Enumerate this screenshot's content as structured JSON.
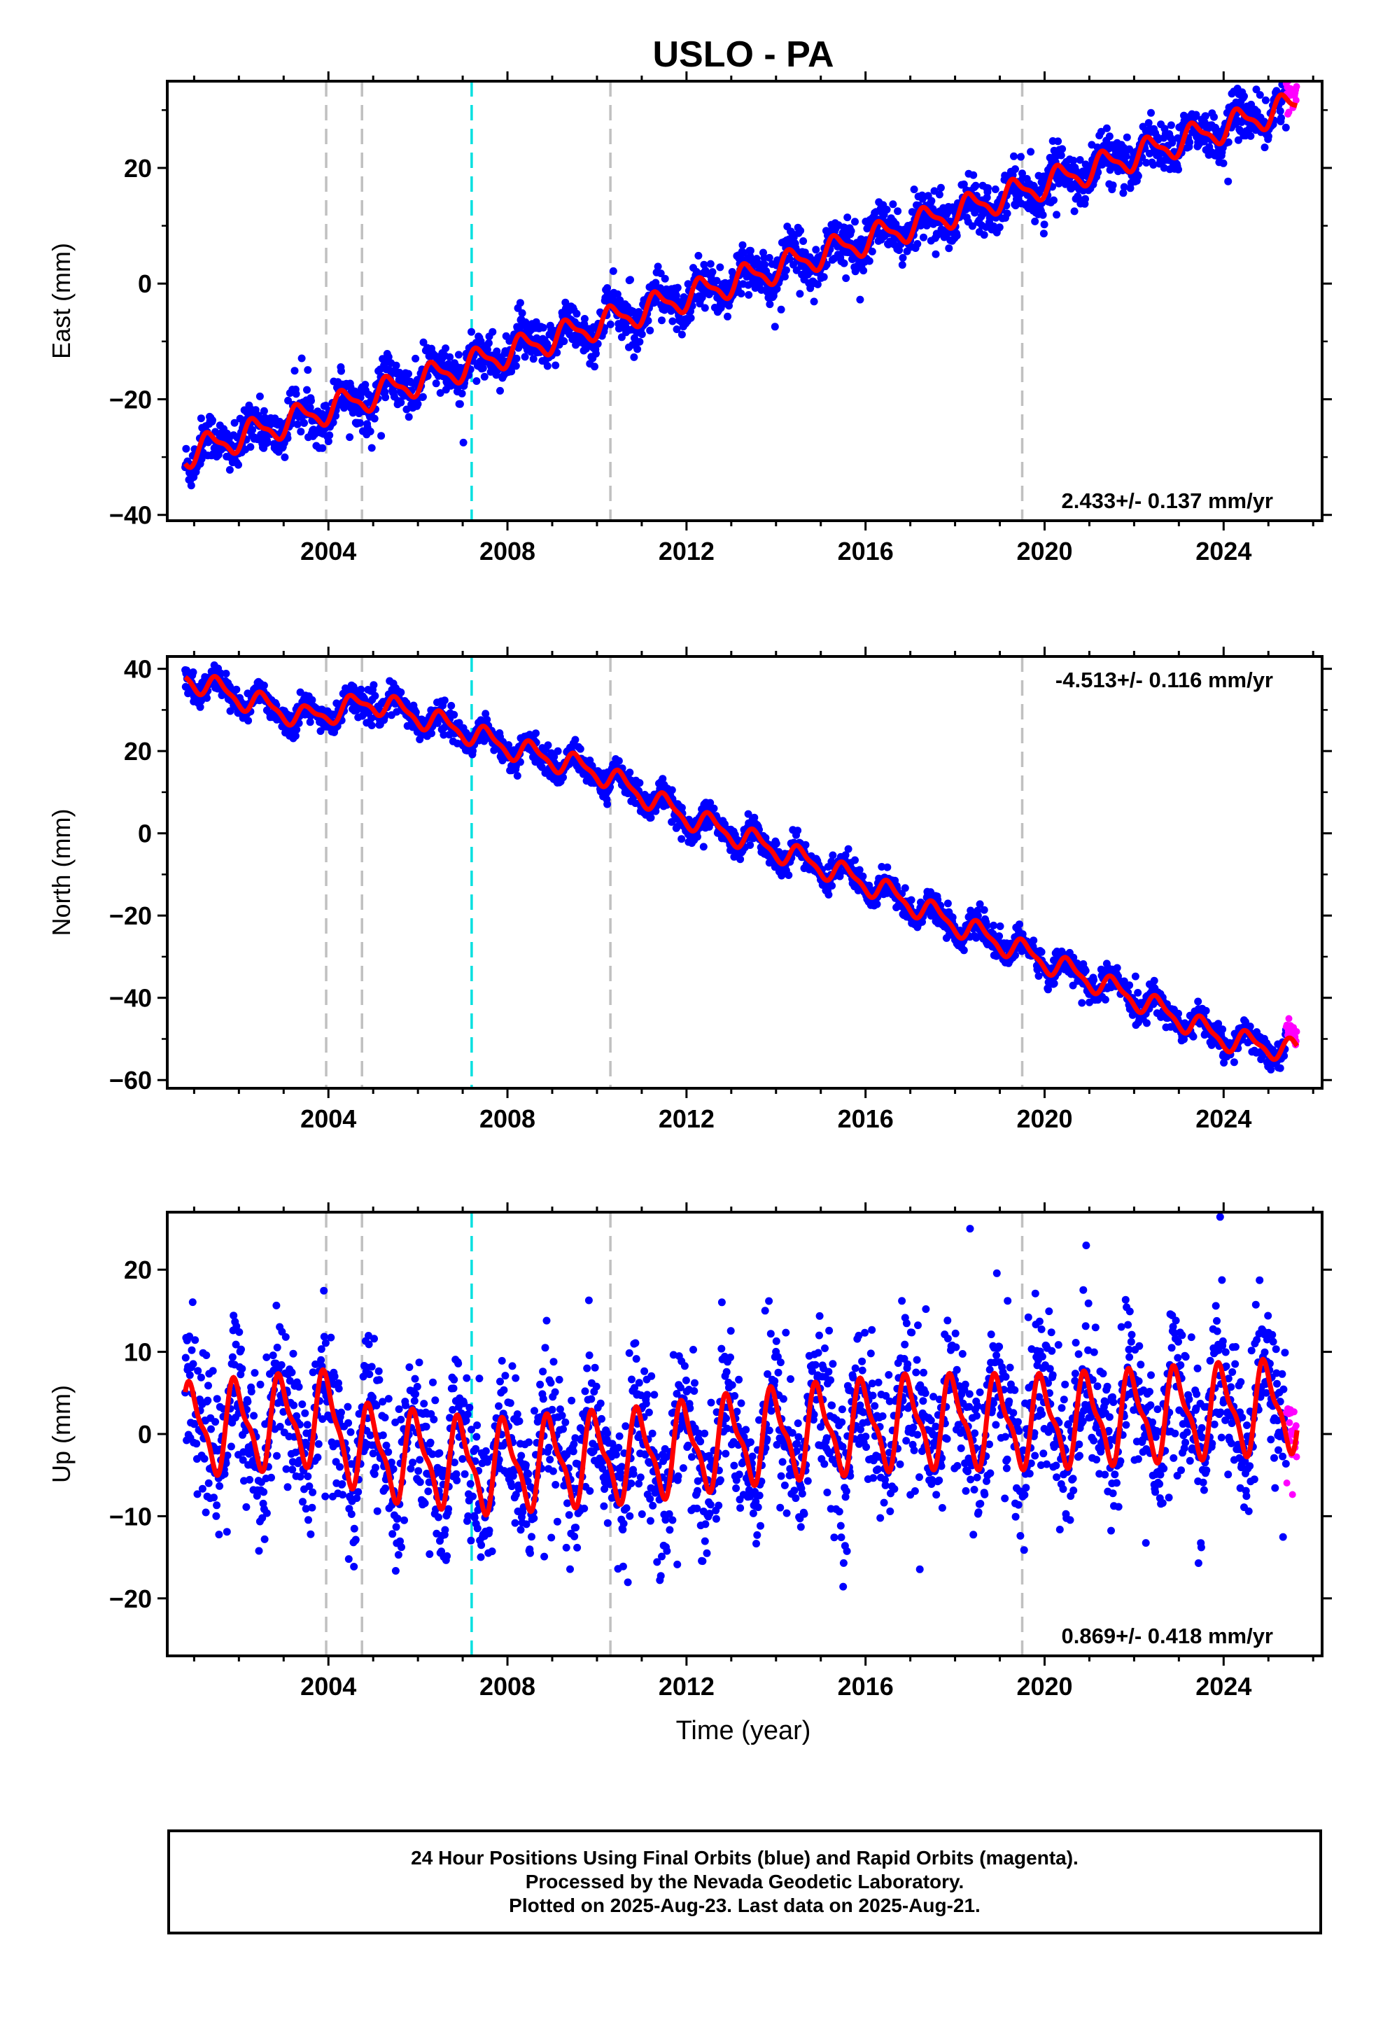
{
  "title": "USLO - PA",
  "xlabel": "Time (year)",
  "colors": {
    "final": "#0000ff",
    "rapid": "#ff00ff",
    "model": "#ff0000",
    "equipment_change": "#c0c0c0",
    "earthquake": "#00e0e0"
  },
  "chart_data": [
    {
      "type": "scatter",
      "panel": "east",
      "ylabel": "East (mm)",
      "rate_label": "2.433+/- 0.137 mm/yr",
      "rate_position": "bottom-right",
      "xlim": [
        2000.4,
        2026.2
      ],
      "ylim": [
        -41,
        35
      ],
      "yticks": [
        -40,
        -20,
        0,
        20
      ],
      "xticks": [
        2004,
        2008,
        2012,
        2016,
        2020,
        2024
      ],
      "trend": {
        "rate": 2.433,
        "value_at_2000_8": -29.5
      },
      "seasonal": {
        "amplitude": 2.2,
        "phase_year": 0.1
      },
      "scatter_sd": 2.0,
      "steps": [],
      "series": [
        {
          "name": "24 Hour Positions Using Final Orbits (blue)",
          "x_range": [
            2000.8,
            2025.4
          ],
          "color": "#0000ff"
        },
        {
          "name": "Rapid Orbits (magenta)",
          "x_range": [
            2025.4,
            2025.64
          ],
          "color": "#ff00ff"
        }
      ],
      "model_curve": {
        "x_range": [
          2000.8,
          2025.64
        ]
      },
      "vlines": [
        {
          "x": 2003.95,
          "kind": "equipment"
        },
        {
          "x": 2004.75,
          "kind": "equipment"
        },
        {
          "x": 2007.2,
          "kind": "earthquake"
        },
        {
          "x": 2010.3,
          "kind": "equipment"
        },
        {
          "x": 2019.5,
          "kind": "equipment"
        }
      ]
    },
    {
      "type": "scatter",
      "panel": "north",
      "ylabel": "North (mm)",
      "rate_label": "-4.513+/- 0.116 mm/yr",
      "rate_position": "top-right",
      "xlim": [
        2000.4,
        2026.2
      ],
      "ylim": [
        -62,
        43
      ],
      "yticks": [
        -60,
        -40,
        -20,
        0,
        20,
        40
      ],
      "xticks": [
        2004,
        2008,
        2012,
        2016,
        2020,
        2024
      ],
      "keyframes": [
        [
          2000.8,
          38
        ],
        [
          2002.0,
          33
        ],
        [
          2003.5,
          28
        ],
        [
          2005.0,
          32
        ],
        [
          2007.0,
          25
        ],
        [
          2008.0,
          21
        ],
        [
          2010.0,
          15
        ],
        [
          2012.0,
          4
        ],
        [
          2014.0,
          -4
        ],
        [
          2016.0,
          -12
        ],
        [
          2018.0,
          -22
        ],
        [
          2020.0,
          -31
        ],
        [
          2022.0,
          -40
        ],
        [
          2024.0,
          -50
        ],
        [
          2025.64,
          -53
        ]
      ],
      "seasonal": {
        "amplitude": 2.5,
        "phase_year": 0.3
      },
      "scatter_sd": 1.6,
      "series": [
        {
          "name": "24 Hour Positions Using Final Orbits (blue)",
          "x_range": [
            2000.8,
            2025.4
          ],
          "color": "#0000ff"
        },
        {
          "name": "Rapid Orbits (magenta)",
          "x_range": [
            2025.4,
            2025.64
          ],
          "color": "#ff00ff"
        }
      ],
      "model_curve": {
        "x_range": [
          2000.8,
          2025.64
        ]
      },
      "vlines": [
        {
          "x": 2003.95,
          "kind": "equipment"
        },
        {
          "x": 2004.75,
          "kind": "equipment"
        },
        {
          "x": 2007.2,
          "kind": "earthquake"
        },
        {
          "x": 2010.3,
          "kind": "equipment"
        },
        {
          "x": 2019.5,
          "kind": "equipment"
        }
      ]
    },
    {
      "type": "scatter",
      "panel": "up",
      "ylabel": "Up (mm)",
      "rate_label": "0.869+/- 0.418 mm/yr",
      "rate_position": "bottom-right",
      "xlim": [
        2000.4,
        2026.2
      ],
      "ylim": [
        -27,
        27
      ],
      "yticks": [
        -20,
        -10,
        0,
        10,
        20
      ],
      "xticks": [
        2004,
        2008,
        2012,
        2016,
        2020,
        2024
      ],
      "keyframes": [
        [
          2000.8,
          0.5
        ],
        [
          2004.0,
          2.0
        ],
        [
          2004.75,
          -2.0
        ],
        [
          2007.5,
          -4.0
        ],
        [
          2011.0,
          -2.5
        ],
        [
          2014.0,
          0.0
        ],
        [
          2017.0,
          1.5
        ],
        [
          2020.0,
          1.5
        ],
        [
          2023.0,
          2.5
        ],
        [
          2025.64,
          3.5
        ]
      ],
      "seasonal": {
        "amplitude": 5.0,
        "phase_year": 0.7
      },
      "scatter_sd": 4.5,
      "series": [
        {
          "name": "24 Hour Positions Using Final Orbits (blue)",
          "x_range": [
            2000.8,
            2025.4
          ],
          "color": "#0000ff"
        },
        {
          "name": "Rapid Orbits (magenta)",
          "x_range": [
            2025.4,
            2025.64
          ],
          "color": "#ff00ff"
        }
      ],
      "model_curve": {
        "x_range": [
          2000.8,
          2025.64
        ]
      },
      "vlines": [
        {
          "x": 2003.95,
          "kind": "equipment"
        },
        {
          "x": 2004.75,
          "kind": "equipment"
        },
        {
          "x": 2007.2,
          "kind": "earthquake"
        },
        {
          "x": 2010.3,
          "kind": "equipment"
        },
        {
          "x": 2019.5,
          "kind": "equipment"
        }
      ]
    }
  ],
  "footer": {
    "line1": "24 Hour Positions Using Final Orbits (blue) and Rapid Orbits (magenta).",
    "line2": "Processed by the Nevada Geodetic Laboratory.",
    "line3": "Plotted on 2025-Aug-23. Last data on 2025-Aug-21."
  }
}
